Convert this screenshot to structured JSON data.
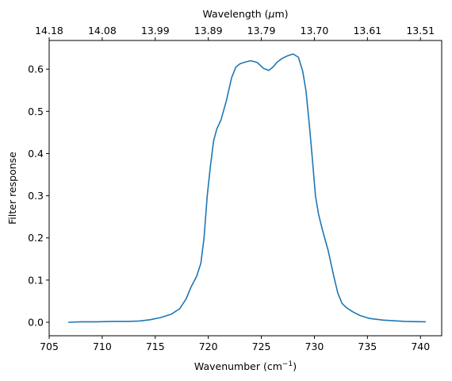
{
  "chart_data": {
    "type": "line",
    "xlabel": "Wavenumber (cm",
    "xlabel_sup": "−1",
    "xlabel_close": ")",
    "ylabel": "Filter response",
    "top_xlabel_pre": "Wavelength (",
    "top_xlabel_mu": "μ",
    "top_xlabel_post": "m)",
    "xlim": [
      705,
      742
    ],
    "ylim": [
      -0.032,
      0.668
    ],
    "grid": false,
    "xticks": [
      705,
      710,
      715,
      720,
      725,
      730,
      735,
      740
    ],
    "xtick_labels": [
      "705",
      "710",
      "715",
      "720",
      "725",
      "730",
      "735",
      "740"
    ],
    "yticks": [
      0.0,
      0.1,
      0.2,
      0.3,
      0.4,
      0.5,
      0.6
    ],
    "ytick_labels": [
      "0.0",
      "0.1",
      "0.2",
      "0.3",
      "0.4",
      "0.5",
      "0.6"
    ],
    "top_xtick_labels": [
      "14.18",
      "14.08",
      "13.99",
      "13.89",
      "13.79",
      "13.70",
      "13.61",
      "13.51"
    ],
    "line_color": "#1f77b4",
    "series": [
      {
        "x": [
          706.8,
          708.0,
          709.5,
          711.0,
          712.5,
          713.5,
          714.5,
          715.5,
          716.5,
          717.3,
          717.9,
          718.4,
          718.9,
          719.3,
          719.6,
          719.9,
          720.2,
          720.5,
          720.8,
          721.2,
          721.7,
          722.2,
          722.6,
          723.0,
          723.5,
          724.0,
          724.6,
          725.2,
          725.7,
          726.1,
          726.5,
          727.0,
          727.5,
          728.0,
          728.5,
          728.9,
          729.2,
          729.5,
          729.8,
          730.1,
          730.4,
          730.8,
          731.3,
          731.8,
          732.2,
          732.6,
          733.0,
          733.6,
          734.3,
          735.2,
          736.5,
          738.5,
          740.5
        ],
        "y": [
          0.0,
          0.001,
          0.001,
          0.002,
          0.002,
          0.003,
          0.006,
          0.011,
          0.019,
          0.032,
          0.055,
          0.085,
          0.109,
          0.14,
          0.2,
          0.3,
          0.37,
          0.43,
          0.458,
          0.48,
          0.525,
          0.58,
          0.605,
          0.613,
          0.617,
          0.62,
          0.616,
          0.602,
          0.597,
          0.605,
          0.617,
          0.626,
          0.632,
          0.636,
          0.628,
          0.595,
          0.55,
          0.475,
          0.39,
          0.3,
          0.255,
          0.215,
          0.17,
          0.112,
          0.07,
          0.045,
          0.035,
          0.025,
          0.016,
          0.009,
          0.005,
          0.002,
          0.001
        ]
      }
    ]
  }
}
